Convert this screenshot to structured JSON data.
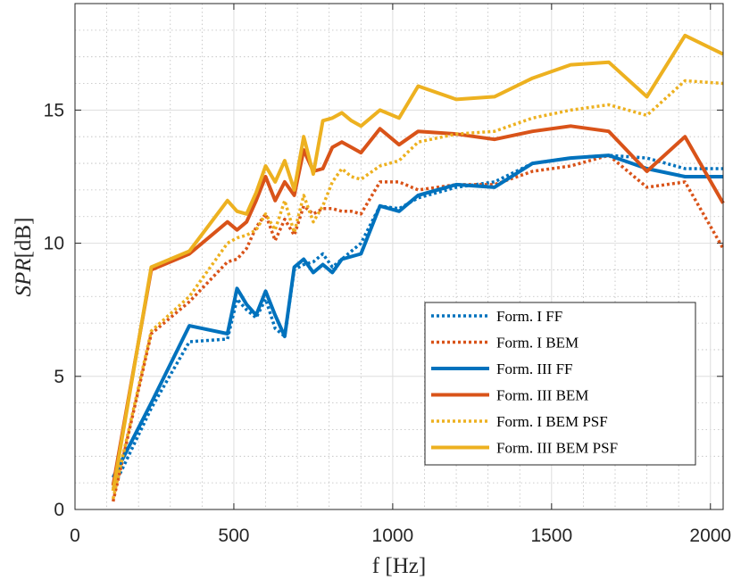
{
  "chart_data": {
    "type": "line",
    "title": "",
    "xlabel": "f [Hz]",
    "ylabel_italic": "SPR",
    "ylabel_unit": "[dB]",
    "xlim": [
      0,
      2040
    ],
    "ylim": [
      0,
      19
    ],
    "xticks": [
      0,
      500,
      1000,
      1500,
      2000
    ],
    "xtick_labels": [
      "0",
      "500",
      "1000",
      "1500",
      "2000"
    ],
    "yticks": [
      0,
      5,
      10,
      15
    ],
    "ytick_labels": [
      "0",
      "5",
      "10",
      "15"
    ],
    "grid": true,
    "minor_grid": true,
    "legend_position": "lower-right",
    "series": [
      {
        "name": "Form. I FF",
        "color": "#0072BD",
        "style": "dotted",
        "x": [
          120,
          240,
          360,
          480,
          510,
          540,
          570,
          600,
          630,
          660,
          690,
          720,
          750,
          780,
          810,
          840,
          870,
          900,
          960,
          1020,
          1080,
          1200,
          1320,
          1440,
          1560,
          1680,
          1800,
          1920,
          2040
        ],
        "y": [
          0.8,
          3.8,
          6.3,
          6.4,
          7.9,
          7.5,
          7.2,
          7.9,
          6.8,
          6.5,
          9.0,
          9.2,
          9.3,
          9.6,
          9.1,
          9.4,
          9.7,
          10.0,
          11.4,
          11.3,
          11.7,
          12.1,
          12.3,
          13.0,
          13.2,
          13.3,
          13.2,
          12.8,
          12.8
        ]
      },
      {
        "name": "Form. I BEM",
        "color": "#D95319",
        "style": "dotted",
        "x": [
          120,
          240,
          360,
          480,
          510,
          540,
          570,
          600,
          630,
          660,
          690,
          720,
          750,
          780,
          810,
          840,
          870,
          900,
          960,
          1020,
          1080,
          1200,
          1320,
          1440,
          1560,
          1680,
          1800,
          1920,
          2040
        ],
        "y": [
          0.3,
          6.6,
          7.8,
          9.3,
          9.4,
          9.8,
          10.6,
          11.1,
          10.1,
          10.9,
          10.3,
          11.4,
          11.1,
          11.3,
          11.3,
          11.2,
          11.2,
          11.1,
          12.3,
          12.3,
          12.0,
          12.2,
          12.2,
          12.7,
          12.9,
          13.3,
          12.1,
          12.3,
          9.8
        ]
      },
      {
        "name": "Form. III FF",
        "color": "#0072BD",
        "style": "solid",
        "x": [
          120,
          240,
          360,
          480,
          510,
          540,
          570,
          600,
          630,
          660,
          690,
          720,
          750,
          780,
          810,
          840,
          870,
          900,
          960,
          1020,
          1080,
          1200,
          1320,
          1440,
          1560,
          1680,
          1800,
          1920,
          2040
        ],
        "y": [
          1.2,
          4.0,
          6.9,
          6.6,
          8.3,
          7.7,
          7.3,
          8.2,
          7.3,
          6.5,
          9.1,
          9.4,
          8.9,
          9.2,
          8.9,
          9.4,
          9.5,
          9.6,
          11.4,
          11.2,
          11.8,
          12.2,
          12.1,
          13.0,
          13.2,
          13.3,
          12.8,
          12.5,
          12.5
        ]
      },
      {
        "name": "Form. III BEM",
        "color": "#D95319",
        "style": "solid",
        "x": [
          120,
          240,
          360,
          480,
          510,
          540,
          570,
          600,
          630,
          660,
          690,
          720,
          750,
          780,
          810,
          840,
          870,
          900,
          960,
          1020,
          1080,
          1200,
          1320,
          1440,
          1560,
          1680,
          1800,
          1920,
          2040
        ],
        "y": [
          0.9,
          9.0,
          9.6,
          10.8,
          10.5,
          10.8,
          11.6,
          12.5,
          11.6,
          12.3,
          11.8,
          13.5,
          12.7,
          12.8,
          13.6,
          13.8,
          13.6,
          13.4,
          14.3,
          13.7,
          14.2,
          14.1,
          13.9,
          14.2,
          14.4,
          14.2,
          12.7,
          14.0,
          11.5
        ]
      },
      {
        "name": "Form. I BEM PSF",
        "color": "#EDB120",
        "style": "dotted",
        "x": [
          120,
          240,
          360,
          480,
          510,
          540,
          570,
          600,
          630,
          660,
          690,
          720,
          750,
          780,
          810,
          840,
          870,
          900,
          960,
          1020,
          1080,
          1200,
          1320,
          1440,
          1560,
          1680,
          1800,
          1920,
          2040
        ],
        "y": [
          0.4,
          6.7,
          8.0,
          10.0,
          10.2,
          10.3,
          10.5,
          11.1,
          10.5,
          11.6,
          10.4,
          11.8,
          10.8,
          11.4,
          12.3,
          12.8,
          12.5,
          12.4,
          12.9,
          13.1,
          13.8,
          14.1,
          14.2,
          14.7,
          15.0,
          15.2,
          14.8,
          16.1,
          16.0
        ]
      },
      {
        "name": "Form. III BEM PSF",
        "color": "#EDB120",
        "style": "solid",
        "x": [
          120,
          240,
          360,
          480,
          510,
          540,
          570,
          600,
          630,
          660,
          690,
          720,
          750,
          780,
          810,
          840,
          870,
          900,
          960,
          1020,
          1080,
          1200,
          1320,
          1440,
          1560,
          1680,
          1800,
          1920,
          2040
        ],
        "y": [
          0.7,
          9.1,
          9.7,
          11.6,
          11.2,
          11.1,
          11.9,
          12.9,
          12.3,
          13.1,
          12.0,
          14.0,
          12.6,
          14.6,
          14.7,
          14.9,
          14.6,
          14.4,
          15.0,
          14.7,
          15.9,
          15.4,
          15.5,
          16.2,
          16.7,
          16.8,
          15.5,
          17.8,
          17.1
        ]
      }
    ]
  }
}
